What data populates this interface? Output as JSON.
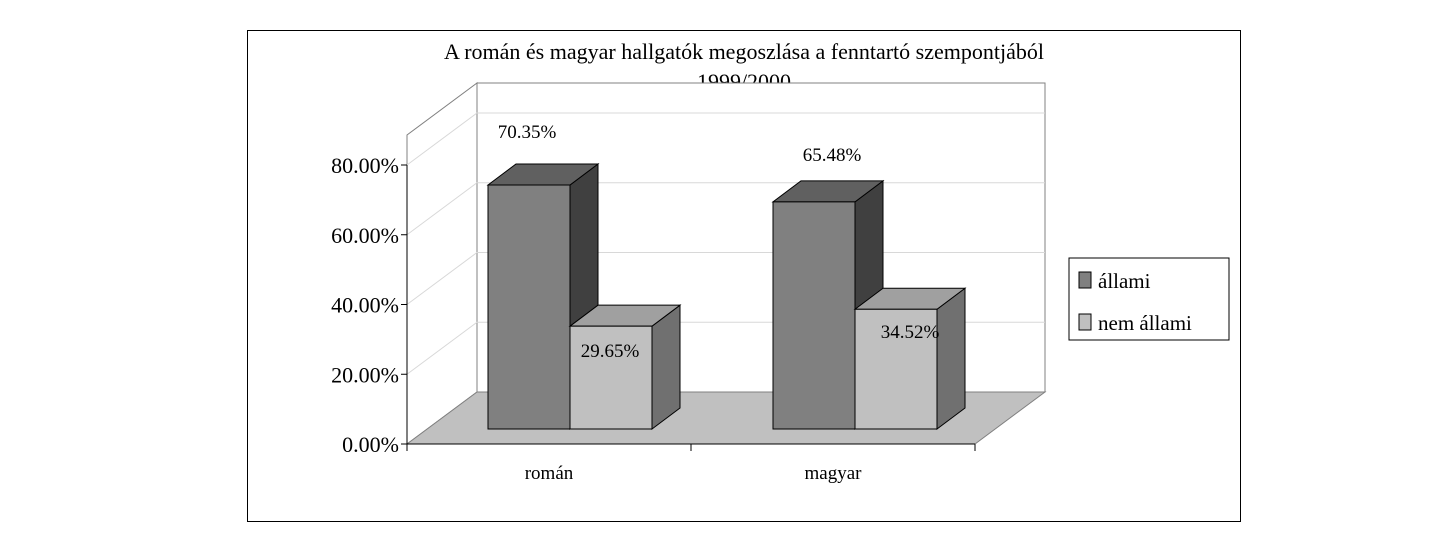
{
  "chart_data": {
    "type": "bar",
    "title": "A román és magyar hallgatók megoszlása a fenntartó szempontjából",
    "subtitle": "1999/2000",
    "categories": [
      "román",
      "magyar"
    ],
    "series": [
      {
        "name": "állami",
        "values": [
          70.35,
          65.48
        ],
        "labels": [
          "70.35%",
          "65.48%"
        ]
      },
      {
        "name": "nem állami",
        "values": [
          29.65,
          34.52
        ],
        "labels": [
          "29.65%",
          "34.52%"
        ]
      }
    ],
    "ylim": [
      0,
      80
    ],
    "yticks": [
      0,
      20,
      40,
      60,
      80
    ],
    "ytick_labels": [
      "0.00%",
      "20.00%",
      "40.00%",
      "60.00%",
      "80.00%"
    ],
    "grid": true,
    "legend_position": "right",
    "style": "3d-clustered-column",
    "colors": {
      "állami": "#808080",
      "nem állami": "#c0c0c0",
      "floor": "#c0c0c0"
    }
  }
}
